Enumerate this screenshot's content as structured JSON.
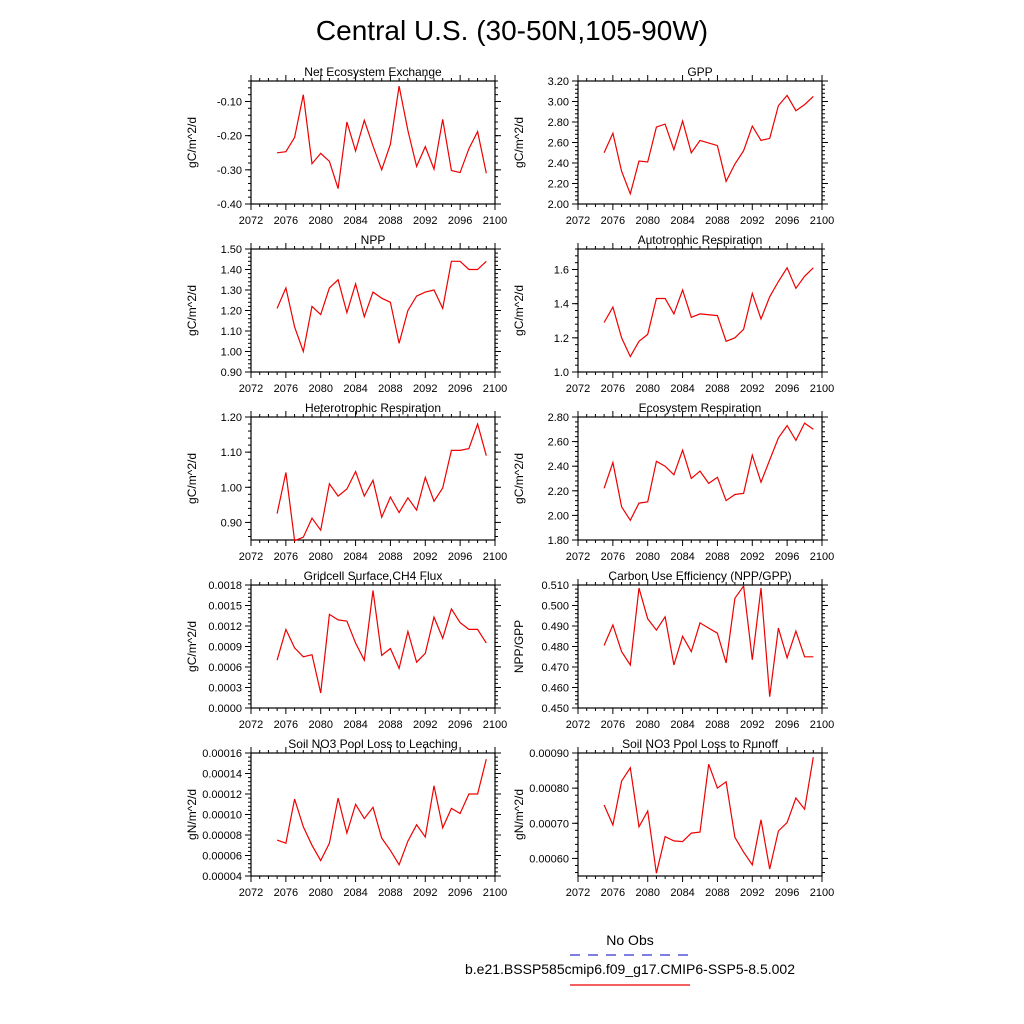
{
  "figure": {
    "title": "Central U.S. (30-50N,105-90W)",
    "legend": {
      "obs_label": "No Obs",
      "obs_color": "#3333cc",
      "model_label": "b.e21.BSSP585cmip6.f09_g17.CMIP6-SSP5-8.5.002",
      "model_color": "#ee0000"
    }
  },
  "chart_data": [
    {
      "type": "line",
      "title": "Net Ecosystem Exchange",
      "ylabel": "gC/m^2/d",
      "xlim": [
        2072,
        2100
      ],
      "xticks": [
        "2072",
        "2076",
        "2080",
        "2084",
        "2088",
        "2092",
        "2096",
        "2100"
      ],
      "ylim": [
        -0.4,
        -0.04
      ],
      "yticks": [
        "-0.40",
        "-0.30",
        "-0.20",
        "-0.10"
      ],
      "ytick_values": [
        -0.4,
        -0.3,
        -0.2,
        -0.1
      ],
      "x": [
        2075,
        2076,
        2077,
        2078,
        2079,
        2080,
        2081,
        2082,
        2083,
        2084,
        2085,
        2086,
        2087,
        2088,
        2089,
        2090,
        2091,
        2092,
        2093,
        2094,
        2095,
        2096,
        2097,
        2098,
        2099
      ],
      "values": [
        -0.25,
        -0.247,
        -0.205,
        -0.08,
        -0.282,
        -0.252,
        -0.275,
        -0.355,
        -0.16,
        -0.245,
        -0.155,
        -0.23,
        -0.3,
        -0.225,
        -0.055,
        -0.185,
        -0.29,
        -0.232,
        -0.298,
        -0.152,
        -0.302,
        -0.308,
        -0.238,
        -0.188,
        -0.31
      ]
    },
    {
      "type": "line",
      "title": "GPP",
      "ylabel": "gC/m^2/d",
      "xlim": [
        2072,
        2100
      ],
      "xticks": [
        "2072",
        "2076",
        "2080",
        "2084",
        "2088",
        "2092",
        "2096",
        "2100"
      ],
      "ylim": [
        2.0,
        3.2
      ],
      "yticks": [
        "2.00",
        "2.20",
        "2.40",
        "2.60",
        "2.80",
        "3.00",
        "3.20"
      ],
      "ytick_values": [
        2.0,
        2.2,
        2.4,
        2.6,
        2.8,
        3.0,
        3.2
      ],
      "x": [
        2075,
        2076,
        2077,
        2078,
        2079,
        2080,
        2081,
        2082,
        2083,
        2084,
        2085,
        2086,
        2088,
        2089,
        2090,
        2091,
        2092,
        2093,
        2094,
        2095,
        2096,
        2097,
        2098,
        2099
      ],
      "values": [
        2.5,
        2.69,
        2.32,
        2.1,
        2.42,
        2.41,
        2.75,
        2.78,
        2.53,
        2.81,
        2.5,
        2.62,
        2.57,
        2.22,
        2.39,
        2.52,
        2.76,
        2.62,
        2.64,
        2.96,
        3.06,
        2.91,
        2.97,
        3.05
      ]
    },
    {
      "type": "line",
      "title": "NPP",
      "ylabel": "gC/m^2/d",
      "xlim": [
        2072,
        2100
      ],
      "xticks": [
        "2072",
        "2076",
        "2080",
        "2084",
        "2088",
        "2092",
        "2096",
        "2100"
      ],
      "ylim": [
        0.9,
        1.5
      ],
      "yticks": [
        "0.90",
        "1.00",
        "1.10",
        "1.20",
        "1.30",
        "1.40",
        "1.50"
      ],
      "ytick_values": [
        0.9,
        1.0,
        1.1,
        1.2,
        1.3,
        1.4,
        1.5
      ],
      "x": [
        2075,
        2076,
        2077,
        2078,
        2079,
        2080,
        2081,
        2082,
        2083,
        2084,
        2085,
        2086,
        2087,
        2088,
        2089,
        2090,
        2091,
        2092,
        2093,
        2094,
        2095,
        2096,
        2097,
        2098,
        2099
      ],
      "values": [
        1.21,
        1.31,
        1.12,
        1.0,
        1.22,
        1.18,
        1.31,
        1.35,
        1.19,
        1.33,
        1.17,
        1.29,
        1.26,
        1.24,
        1.04,
        1.2,
        1.27,
        1.29,
        1.3,
        1.21,
        1.44,
        1.44,
        1.4,
        1.4,
        1.44
      ]
    },
    {
      "type": "line",
      "title": "Autotrophic Respiration",
      "ylabel": "gC/m^2/d",
      "xlim": [
        2072,
        2100
      ],
      "xticks": [
        "2072",
        "2076",
        "2080",
        "2084",
        "2088",
        "2092",
        "2096",
        "2100"
      ],
      "ylim": [
        1.0,
        1.72
      ],
      "yticks": [
        "1.0",
        "1.2",
        "1.4",
        "1.6"
      ],
      "ytick_values": [
        1.0,
        1.2,
        1.4,
        1.6
      ],
      "x": [
        2075,
        2076,
        2077,
        2078,
        2079,
        2080,
        2081,
        2082,
        2083,
        2084,
        2085,
        2086,
        2088,
        2089,
        2090,
        2091,
        2092,
        2093,
        2094,
        2095,
        2096,
        2097,
        2098,
        2099
      ],
      "values": [
        1.29,
        1.38,
        1.2,
        1.09,
        1.18,
        1.22,
        1.43,
        1.43,
        1.34,
        1.48,
        1.32,
        1.34,
        1.33,
        1.18,
        1.2,
        1.25,
        1.46,
        1.31,
        1.44,
        1.53,
        1.61,
        1.49,
        1.56,
        1.61
      ]
    },
    {
      "type": "line",
      "title": "Heterotrophic Respiration",
      "ylabel": "gC/m^2/d",
      "xlim": [
        2072,
        2100
      ],
      "xticks": [
        "2072",
        "2076",
        "2080",
        "2084",
        "2088",
        "2092",
        "2096",
        "2100"
      ],
      "ylim": [
        0.85,
        1.2
      ],
      "yticks": [
        "0.90",
        "1.00",
        "1.10",
        "1.20"
      ],
      "ytick_values": [
        0.9,
        1.0,
        1.1,
        1.2
      ],
      "x": [
        2075,
        2076,
        2077,
        2078,
        2079,
        2080,
        2081,
        2082,
        2083,
        2084,
        2085,
        2086,
        2087,
        2088,
        2089,
        2090,
        2091,
        2092,
        2093,
        2094,
        2095,
        2096,
        2097,
        2098,
        2099
      ],
      "values": [
        0.925,
        1.042,
        0.848,
        0.858,
        0.912,
        0.878,
        1.01,
        0.975,
        0.995,
        1.045,
        0.975,
        1.02,
        0.915,
        0.972,
        0.928,
        0.97,
        0.935,
        1.028,
        0.96,
        0.998,
        1.105,
        1.105,
        1.11,
        1.18,
        1.09
      ]
    },
    {
      "type": "line",
      "title": "Ecosystem Respiration",
      "ylabel": "gC/m^2/d",
      "xlim": [
        2072,
        2100
      ],
      "xticks": [
        "2072",
        "2076",
        "2080",
        "2084",
        "2088",
        "2092",
        "2096",
        "2100"
      ],
      "ylim": [
        1.8,
        2.8
      ],
      "yticks": [
        "1.80",
        "2.00",
        "2.20",
        "2.40",
        "2.60",
        "2.80"
      ],
      "ytick_values": [
        1.8,
        2.0,
        2.2,
        2.4,
        2.6,
        2.8
      ],
      "x": [
        2075,
        2076,
        2077,
        2078,
        2079,
        2080,
        2081,
        2082,
        2083,
        2084,
        2085,
        2086,
        2087,
        2088,
        2089,
        2090,
        2091,
        2092,
        2093,
        2094,
        2095,
        2096,
        2097,
        2098,
        2099
      ],
      "values": [
        2.22,
        2.43,
        2.07,
        1.96,
        2.1,
        2.11,
        2.44,
        2.4,
        2.33,
        2.53,
        2.3,
        2.36,
        2.26,
        2.31,
        2.12,
        2.17,
        2.18,
        2.49,
        2.27,
        2.45,
        2.63,
        2.73,
        2.61,
        2.75,
        2.7
      ]
    },
    {
      "type": "line",
      "title": "Gridcell Surface CH4 Flux",
      "ylabel": "gC/m^2/d",
      "xlim": [
        2072,
        2100
      ],
      "xticks": [
        "2072",
        "2076",
        "2080",
        "2084",
        "2088",
        "2092",
        "2096",
        "2100"
      ],
      "ylim": [
        0.0,
        0.0018
      ],
      "yticks": [
        "0.0000",
        "0.0003",
        "0.0006",
        "0.0009",
        "0.0012",
        "0.0015",
        "0.0018"
      ],
      "ytick_values": [
        0.0,
        0.0003,
        0.0006,
        0.0009,
        0.0012,
        0.0015,
        0.0018
      ],
      "x": [
        2075,
        2076,
        2077,
        2078,
        2079,
        2080,
        2081,
        2082,
        2083,
        2084,
        2085,
        2086,
        2087,
        2088,
        2089,
        2090,
        2091,
        2092,
        2093,
        2094,
        2095,
        2096,
        2097,
        2098,
        2099
      ],
      "values": [
        0.0007,
        0.00115,
        0.00088,
        0.00075,
        0.00078,
        0.00022,
        0.00137,
        0.00129,
        0.00127,
        0.00095,
        0.0007,
        0.00172,
        0.00077,
        0.00087,
        0.00058,
        0.00112,
        0.00067,
        0.0008,
        0.00133,
        0.00102,
        0.00145,
        0.00125,
        0.00115,
        0.00115,
        0.00095
      ]
    },
    {
      "type": "line",
      "title": "Carbon Use Efficiency (NPP/GPP)",
      "ylabel": "NPP/GPP",
      "xlim": [
        2072,
        2100
      ],
      "xticks": [
        "2072",
        "2076",
        "2080",
        "2084",
        "2088",
        "2092",
        "2096",
        "2100"
      ],
      "ylim": [
        0.45,
        0.51
      ],
      "yticks": [
        "0.450",
        "0.460",
        "0.470",
        "0.480",
        "0.490",
        "0.500",
        "0.510"
      ],
      "ytick_values": [
        0.45,
        0.46,
        0.47,
        0.48,
        0.49,
        0.5,
        0.51
      ],
      "x": [
        2075,
        2076,
        2077,
        2078,
        2079,
        2080,
        2081,
        2082,
        2083,
        2084,
        2085,
        2086,
        2087,
        2088,
        2089,
        2090,
        2091,
        2092,
        2093,
        2094,
        2095,
        2096,
        2097,
        2098,
        2099
      ],
      "values": [
        0.4805,
        0.4905,
        0.4775,
        0.471,
        0.5085,
        0.4935,
        0.488,
        0.4945,
        0.471,
        0.485,
        0.4775,
        0.4915,
        0.489,
        0.4865,
        0.472,
        0.5035,
        0.5095,
        0.4735,
        0.5085,
        0.4555,
        0.489,
        0.4745,
        0.4875,
        0.475,
        0.475
      ]
    },
    {
      "type": "line",
      "title": "Soil NO3 Pool Loss to Leaching",
      "ylabel": "gN/m^2/d",
      "xlim": [
        2072,
        2100
      ],
      "xticks": [
        "2072",
        "2076",
        "2080",
        "2084",
        "2088",
        "2092",
        "2096",
        "2100"
      ],
      "ylim": [
        4e-05,
        0.00016
      ],
      "yticks": [
        "0.00004",
        "0.00006",
        "0.00008",
        "0.00010",
        "0.00012",
        "0.00014",
        "0.00016"
      ],
      "ytick_values": [
        4e-05,
        6e-05,
        8e-05,
        0.0001,
        0.00012,
        0.00014,
        0.00016
      ],
      "x": [
        2075,
        2076,
        2077,
        2078,
        2079,
        2080,
        2081,
        2082,
        2083,
        2084,
        2085,
        2086,
        2087,
        2088,
        2089,
        2090,
        2091,
        2092,
        2093,
        2094,
        2095,
        2096,
        2097,
        2098,
        2099
      ],
      "values": [
        7.5e-05,
        7.2e-05,
        0.000115,
        8.8e-05,
        7e-05,
        5.5e-05,
        7.2e-05,
        0.000116,
        8.2e-05,
        0.00011,
        9.6e-05,
        0.000107,
        7.7e-05,
        6.5e-05,
        5.1e-05,
        7.4e-05,
        9e-05,
        7.8e-05,
        0.000128,
        8.7e-05,
        0.000106,
        0.000101,
        0.00012,
        0.00012,
        0.000154
      ]
    },
    {
      "type": "line",
      "title": "Soil NO3 Pool Loss to Runoff",
      "ylabel": "gN/m^2/d",
      "xlim": [
        2072,
        2100
      ],
      "xticks": [
        "2072",
        "2076",
        "2080",
        "2084",
        "2088",
        "2092",
        "2096",
        "2100"
      ],
      "ylim": [
        0.00055,
        0.0009
      ],
      "yticks": [
        "0.00060",
        "0.00070",
        "0.00080",
        "0.00090"
      ],
      "ytick_values": [
        0.0006,
        0.0007,
        0.0008,
        0.0009
      ],
      "x": [
        2075,
        2076,
        2077,
        2078,
        2079,
        2080,
        2081,
        2082,
        2083,
        2084,
        2085,
        2086,
        2087,
        2088,
        2089,
        2090,
        2091,
        2092,
        2093,
        2094,
        2095,
        2096,
        2097,
        2098,
        2099
      ],
      "values": [
        0.000752,
        0.000695,
        0.00082,
        0.000858,
        0.00069,
        0.000735,
        0.000558,
        0.000662,
        0.00065,
        0.000648,
        0.000672,
        0.000675,
        0.000868,
        0.0008,
        0.000818,
        0.00066,
        0.000618,
        0.000582,
        0.00071,
        0.00057,
        0.000678,
        0.000702,
        0.000772,
        0.00074,
        0.000888
      ]
    }
  ]
}
